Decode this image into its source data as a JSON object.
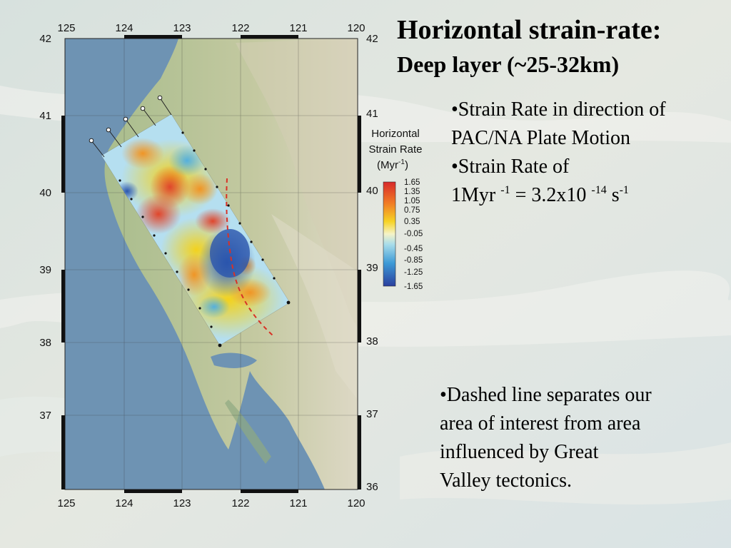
{
  "slide": {
    "title": "Horizontal strain-rate:",
    "subtitle": "Deep layer (~25-32km)",
    "bullets_top": [
      "•Strain Rate in direction of",
      "PAC/NA Plate Motion",
      "•Strain Rate of"
    ],
    "unit_line": {
      "a": "1Myr ",
      "sup1": "-1",
      "b": " = 3.2x10 ",
      "sup2": "-14",
      "c": " s",
      "sup3": "-1"
    },
    "bullets_bottom": [
      "•Dashed line separates our",
      "area of interest from area",
      "influenced by Great",
      "Valley tectonics."
    ]
  },
  "map": {
    "lon_labels": [
      "125",
      "124",
      "123",
      "122",
      "121",
      "120"
    ],
    "lat_labels_left": [
      "42",
      "41",
      "40",
      "39",
      "38",
      "37"
    ],
    "lat_labels_right": [
      "42",
      "41",
      "40",
      "39",
      "38",
      "37",
      "36"
    ],
    "colorbar": {
      "title_lines": [
        "Horizontal",
        "Strain Rate"
      ],
      "unit": {
        "base": "(Myr",
        "sup": "-1",
        "close": ")"
      },
      "ticks": [
        "1.65",
        "1.35",
        "1.05",
        "0.75",
        "0.35",
        "-0.05",
        "-0.45",
        "-0.85",
        "-1.25",
        "-1.65"
      ]
    },
    "colors": {
      "ocean": "#6e93b3",
      "land": "#b9c89a",
      "strain_high": "#e0462b",
      "strain_mid": "#f3d21d",
      "strain_low": "#2a55ad",
      "fault_line": "#d83226"
    }
  }
}
